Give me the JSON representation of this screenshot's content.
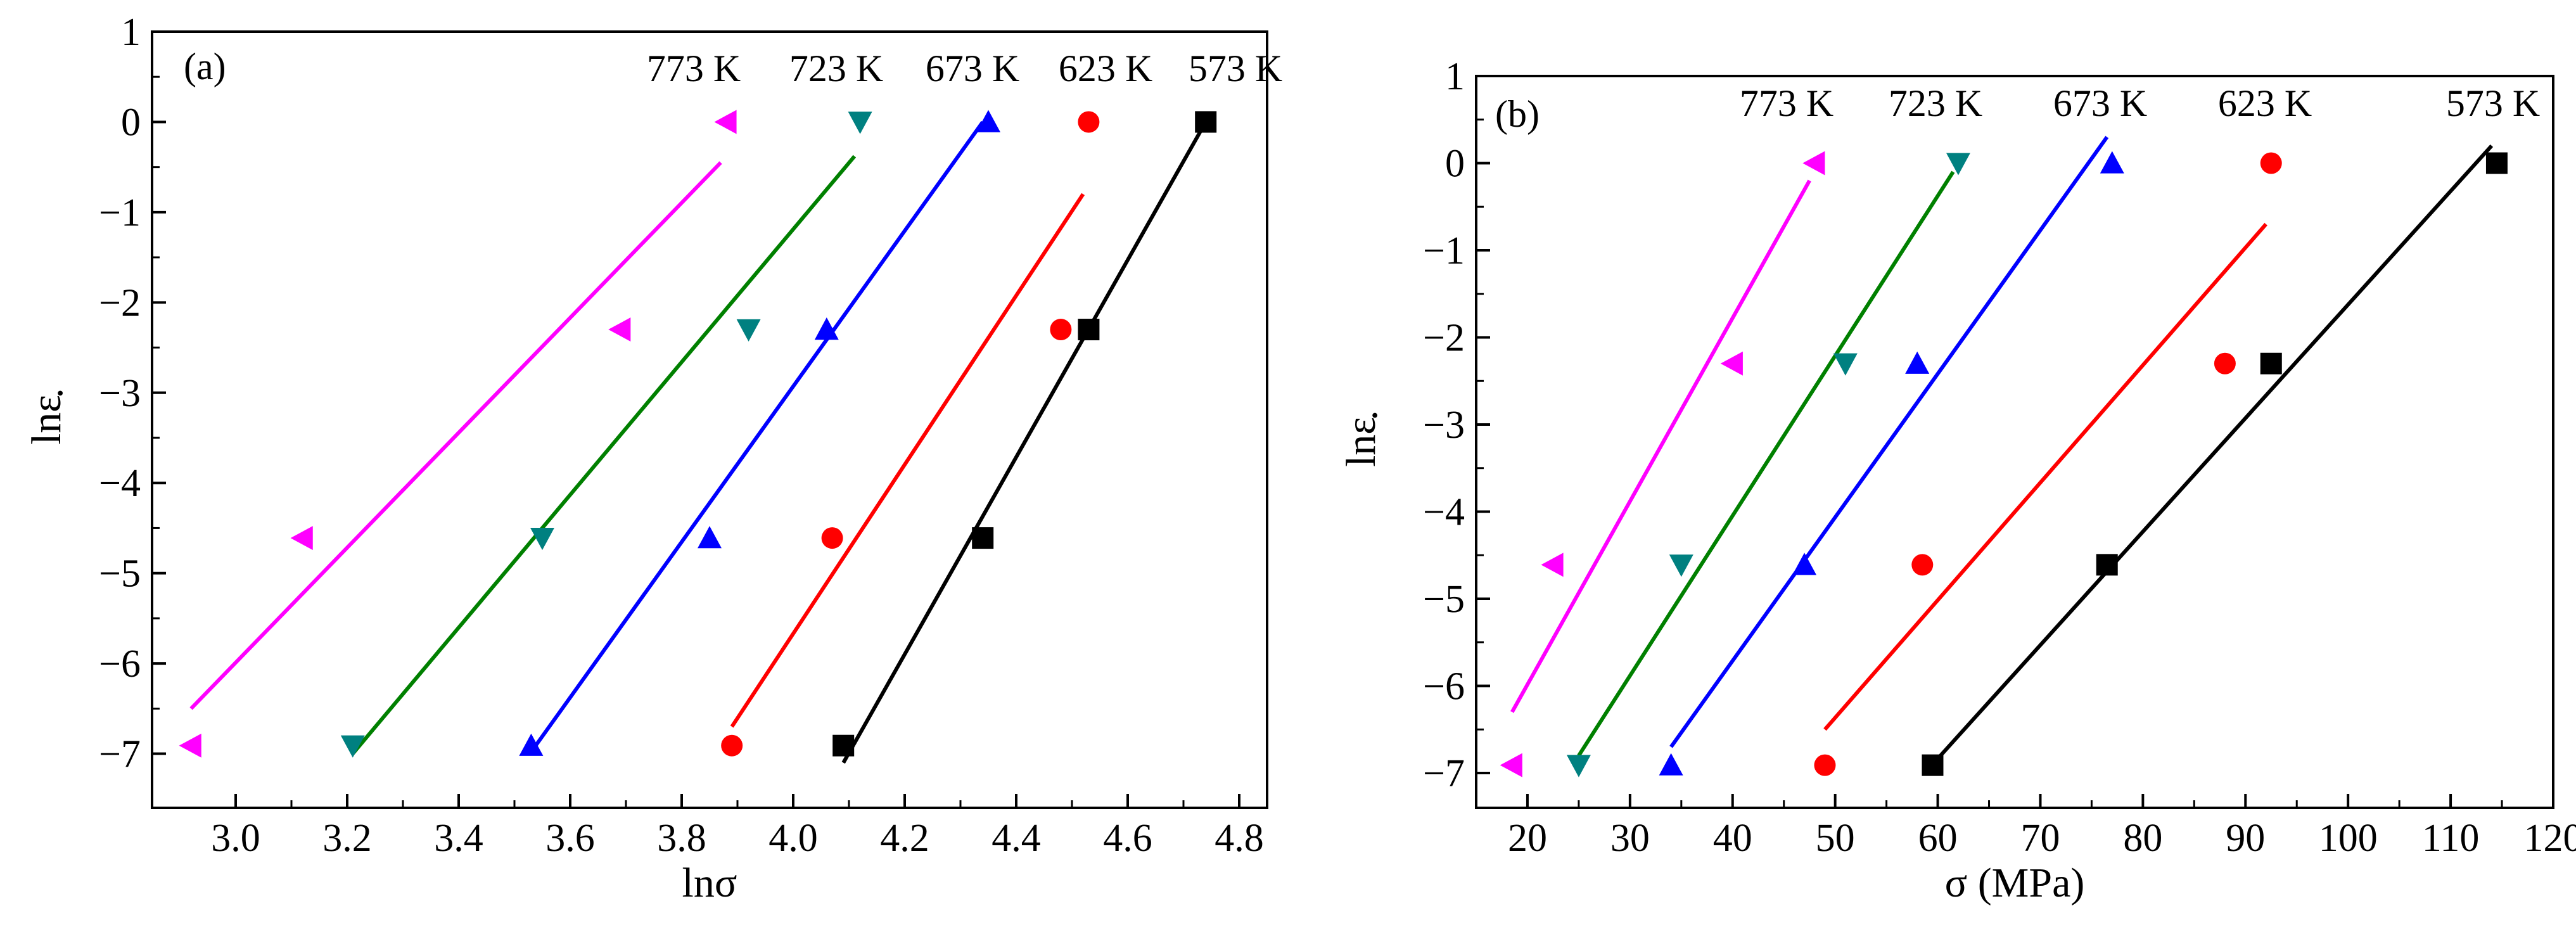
{
  "chart_data": [
    {
      "type": "scatter",
      "panel_label": "(a)",
      "xlabel": "lnσ",
      "ylabel": "lnε̇",
      "ylabel_main": "lnε",
      "ylabel_dot": "·",
      "xlim": [
        2.85,
        4.85
      ],
      "ylim": [
        -7.6,
        1
      ],
      "xticks": [
        3.0,
        3.2,
        3.4,
        3.6,
        3.8,
        4.0,
        4.2,
        4.4,
        4.6,
        4.8
      ],
      "xtick_labels": [
        "3.0",
        "3.2",
        "3.4",
        "3.6",
        "3.8",
        "4.0",
        "4.2",
        "4.4",
        "4.6",
        "4.8"
      ],
      "yticks": [
        1,
        0,
        -1,
        -2,
        -3,
        -4,
        -5,
        -6,
        -7
      ],
      "ytick_labels": [
        "1",
        "0",
        "−1",
        "−2",
        "−3",
        "−4",
        "−5",
        "−6",
        "−7"
      ],
      "grid": false,
      "series": [
        {
          "name": "773 K",
          "color": "#ff00ff",
          "marker": "triangle-left",
          "x": [
            2.92,
            3.12,
            3.69,
            3.88
          ],
          "y": [
            -6.91,
            -4.61,
            -2.3,
            0.0
          ],
          "fit": {
            "x": [
              2.92,
              3.87
            ],
            "y": [
              -6.5,
              -0.45
            ]
          }
        },
        {
          "name": "723 K",
          "color": "#008080",
          "line_color": "#008000",
          "marker": "triangle-down",
          "x": [
            3.21,
            3.55,
            3.92,
            4.12
          ],
          "y": [
            -6.91,
            -4.61,
            -2.3,
            0.0
          ],
          "fit": {
            "x": [
              3.21,
              4.11
            ],
            "y": [
              -7.0,
              -0.38
            ]
          }
        },
        {
          "name": "673 K",
          "color": "#0000ff",
          "marker": "triangle-up",
          "x": [
            3.53,
            3.85,
            4.06,
            4.35
          ],
          "y": [
            -6.91,
            -4.61,
            -2.3,
            0.0
          ],
          "fit": {
            "x": [
              3.53,
              4.34
            ],
            "y": [
              -6.98,
              0.0
            ]
          }
        },
        {
          "name": "623 K",
          "color": "#ff0000",
          "marker": "circle",
          "x": [
            3.89,
            4.07,
            4.48,
            4.53
          ],
          "y": [
            -6.91,
            -4.61,
            -2.3,
            0.0
          ],
          "fit": {
            "x": [
              3.89,
              4.52
            ],
            "y": [
              -6.7,
              -0.8
            ]
          }
        },
        {
          "name": "573 K",
          "color": "#000000",
          "marker": "square",
          "x": [
            4.09,
            4.34,
            4.53,
            4.74
          ],
          "y": [
            -6.91,
            -4.61,
            -2.3,
            0.0
          ],
          "fit": {
            "x": [
              4.09,
              4.74
            ],
            "y": [
              -7.1,
              0.0
            ]
          }
        }
      ]
    },
    {
      "type": "scatter",
      "panel_label": "(b)",
      "xlabel": "σ (MPa)",
      "ylabel": "lnε̇",
      "ylabel_main": "lnε",
      "ylabel_dot": "·",
      "xlim": [
        15,
        120
      ],
      "ylim": [
        -7.4,
        1
      ],
      "xticks": [
        20,
        30,
        40,
        50,
        60,
        70,
        80,
        90,
        100,
        110,
        120
      ],
      "xtick_labels": [
        "20",
        "30",
        "40",
        "50",
        "60",
        "70",
        "80",
        "90",
        "100",
        "110",
        "120"
      ],
      "yticks": [
        1,
        0,
        -1,
        -2,
        -3,
        -4,
        -5,
        -6,
        -7
      ],
      "ytick_labels": [
        "1",
        "0",
        "−1",
        "−2",
        "−3",
        "−4",
        "−5",
        "−6",
        "−7"
      ],
      "grid": false,
      "series": [
        {
          "name": "773 K",
          "color": "#ff00ff",
          "marker": "triangle-left",
          "x": [
            18.5,
            22.5,
            40,
            48
          ],
          "y": [
            -6.91,
            -4.61,
            -2.3,
            0.0
          ],
          "fit": {
            "x": [
              18.5,
              47.5
            ],
            "y": [
              -6.3,
              -0.2
            ]
          }
        },
        {
          "name": "723 K",
          "color": "#008080",
          "line_color": "#008000",
          "marker": "triangle-down",
          "x": [
            25,
            35,
            51,
            62
          ],
          "y": [
            -6.91,
            -4.61,
            -2.3,
            0.0
          ],
          "fit": {
            "x": [
              25,
              61.5
            ],
            "y": [
              -6.8,
              -0.1
            ]
          }
        },
        {
          "name": "673 K",
          "color": "#0000ff",
          "marker": "triangle-up",
          "x": [
            34,
            47,
            58,
            77
          ],
          "y": [
            -6.91,
            -4.61,
            -2.3,
            0.0
          ],
          "fit": {
            "x": [
              34,
              76.5
            ],
            "y": [
              -6.7,
              0.3
            ]
          }
        },
        {
          "name": "623 K",
          "color": "#ff0000",
          "marker": "circle",
          "x": [
            49,
            58.5,
            88,
            92.5
          ],
          "y": [
            -6.91,
            -4.61,
            -2.3,
            0.0
          ],
          "fit": {
            "x": [
              49,
              92
            ],
            "y": [
              -6.5,
              -0.7
            ]
          }
        },
        {
          "name": "573 K",
          "color": "#000000",
          "marker": "square",
          "x": [
            59.5,
            76.5,
            92.5,
            114.5
          ],
          "y": [
            -6.91,
            -4.61,
            -2.3,
            0.0
          ],
          "fit": {
            "x": [
              59.5,
              114
            ],
            "y": [
              -6.9,
              0.2
            ]
          }
        }
      ]
    }
  ]
}
